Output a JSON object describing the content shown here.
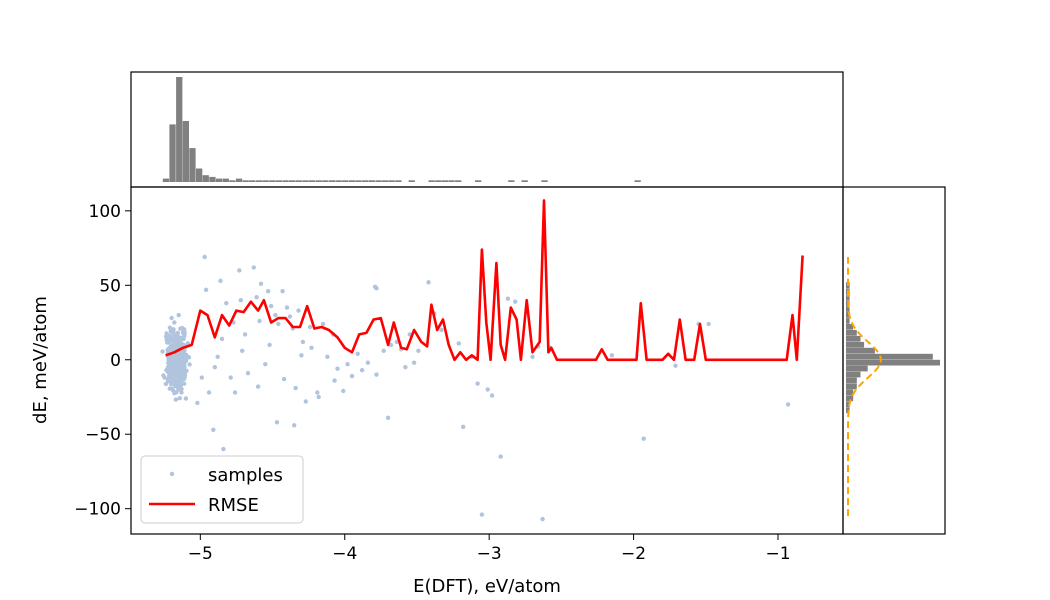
{
  "chart_data": {
    "type": "scatter",
    "xlabel": "E(DFT), eV/atom",
    "ylabel": "dE, meV/atom",
    "xlim": [
      -5.48,
      -0.55
    ],
    "ylim": [
      -117,
      116
    ],
    "xticks": [
      -5,
      -4,
      -3,
      -2,
      -1
    ],
    "xtick_labels": [
      "−5",
      "−4",
      "−3",
      "−2",
      "−1"
    ],
    "yticks": [
      -100,
      -50,
      0,
      50,
      100
    ],
    "ytick_labels": [
      "−100",
      "−50",
      "0",
      "50",
      "100"
    ],
    "legend": {
      "placement": "lower-left",
      "entries": [
        "samples",
        "RMSE"
      ]
    },
    "colors": {
      "samples": "#b0c4de",
      "rmse": "#ff0000",
      "histogram": "#808080",
      "gaussian": "#ffa500"
    },
    "series": [
      {
        "name": "samples",
        "type": "scatter",
        "points": [
          [
            -4.97,
            69
          ],
          [
            -4.73,
            60
          ],
          [
            -4.63,
            62
          ],
          [
            -4.86,
            53
          ],
          [
            -4.58,
            51
          ],
          [
            -4.96,
            47
          ],
          [
            -4.53,
            46
          ],
          [
            -4.43,
            46
          ],
          [
            -4.61,
            42
          ],
          [
            -4.72,
            40
          ],
          [
            -4.82,
            38
          ],
          [
            -4.51,
            36
          ],
          [
            -4.32,
            33
          ],
          [
            -4.38,
            29
          ],
          [
            -4.46,
            24
          ],
          [
            -4.24,
            22
          ],
          [
            -4.15,
            24
          ],
          [
            -4.08,
            17
          ],
          [
            -4.29,
            12
          ],
          [
            -4.52,
            10
          ],
          [
            -4.71,
            6
          ],
          [
            -4.88,
            2
          ],
          [
            -4.79,
            -12
          ],
          [
            -4.67,
            -9
          ],
          [
            -4.55,
            -3
          ],
          [
            -4.42,
            -13
          ],
          [
            -4.34,
            -19
          ],
          [
            -4.27,
            -28
          ],
          [
            -4.18,
            -25
          ],
          [
            -4.07,
            -14
          ],
          [
            -4.01,
            -21
          ],
          [
            -3.95,
            -11
          ],
          [
            -3.88,
            -7
          ],
          [
            -3.78,
            -10
          ],
          [
            -3.79,
            49
          ],
          [
            -3.78,
            48
          ],
          [
            -3.68,
            10
          ],
          [
            -3.61,
            7
          ],
          [
            -3.55,
            17
          ],
          [
            -3.42,
            52
          ],
          [
            -3.38,
            31
          ],
          [
            -3.33,
            20
          ],
          [
            -3.21,
            11
          ],
          [
            -3.18,
            -45
          ],
          [
            -3.12,
            2
          ],
          [
            -3.08,
            -16
          ],
          [
            -3.05,
            -104
          ],
          [
            -3.01,
            -20
          ],
          [
            -2.98,
            -24
          ],
          [
            -2.92,
            -65
          ],
          [
            -2.87,
            41
          ],
          [
            -2.82,
            39
          ],
          [
            -2.74,
            33
          ],
          [
            -2.66,
            9
          ],
          [
            -2.63,
            -107
          ],
          [
            -2.58,
            8
          ],
          [
            -2.7,
            2
          ],
          [
            -2.15,
            3
          ],
          [
            -1.93,
            -53
          ],
          [
            -1.71,
            -4
          ],
          [
            -1.55,
            24
          ],
          [
            -1.48,
            24
          ],
          [
            -0.93,
            -30
          ],
          [
            -4.6,
            -18
          ],
          [
            -4.47,
            -42
          ],
          [
            -4.35,
            -44
          ],
          [
            -4.19,
            -22
          ],
          [
            -3.7,
            -39
          ],
          [
            -3.49,
            6
          ],
          [
            -3.52,
            -2
          ],
          [
            -4.84,
            -60
          ],
          [
            -4.91,
            -47
          ],
          [
            -4.94,
            -22
          ],
          [
            -4.76,
            -22
          ],
          [
            -5.1,
            -26
          ],
          [
            -5.02,
            -29
          ],
          [
            -4.99,
            -12
          ],
          [
            -4.9,
            -5
          ],
          [
            -4.85,
            14
          ],
          [
            -4.77,
            25
          ],
          [
            -4.69,
            17
          ],
          [
            -4.59,
            26
          ],
          [
            -4.48,
            30
          ],
          [
            -4.4,
            35
          ],
          [
            -4.36,
            21
          ],
          [
            -4.3,
            3
          ],
          [
            -4.23,
            8
          ],
          [
            -4.12,
            2
          ],
          [
            -4.05,
            -6
          ],
          [
            -3.98,
            -3
          ],
          [
            -3.91,
            4
          ],
          [
            -3.84,
            -2
          ],
          [
            -3.73,
            6
          ],
          [
            -3.64,
            12
          ],
          [
            -3.58,
            -5
          ],
          [
            -5.18,
            25
          ],
          [
            -5.15,
            30
          ],
          [
            -5.12,
            18
          ],
          [
            -5.16,
            -18
          ],
          [
            -5.13,
            -22
          ]
        ]
      },
      {
        "name": "RMSE",
        "type": "line",
        "points": [
          [
            -5.24,
            3
          ],
          [
            -5.18,
            5
          ],
          [
            -5.12,
            8
          ],
          [
            -5.06,
            10
          ],
          [
            -5.0,
            33
          ],
          [
            -4.95,
            30
          ],
          [
            -4.9,
            15
          ],
          [
            -4.85,
            30
          ],
          [
            -4.8,
            23
          ],
          [
            -4.75,
            33
          ],
          [
            -4.7,
            32
          ],
          [
            -4.65,
            39
          ],
          [
            -4.6,
            33
          ],
          [
            -4.56,
            40
          ],
          [
            -4.51,
            25
          ],
          [
            -4.46,
            28
          ],
          [
            -4.41,
            28
          ],
          [
            -4.36,
            22
          ],
          [
            -4.31,
            22
          ],
          [
            -4.26,
            36
          ],
          [
            -4.21,
            21
          ],
          [
            -4.16,
            22
          ],
          [
            -4.11,
            20
          ],
          [
            -4.05,
            15
          ],
          [
            -4.0,
            8
          ],
          [
            -3.95,
            5
          ],
          [
            -3.9,
            17
          ],
          [
            -3.85,
            18
          ],
          [
            -3.8,
            27
          ],
          [
            -3.75,
            28
          ],
          [
            -3.7,
            10
          ],
          [
            -3.66,
            25
          ],
          [
            -3.61,
            8
          ],
          [
            -3.57,
            7
          ],
          [
            -3.52,
            20
          ],
          [
            -3.47,
            12
          ],
          [
            -3.43,
            9
          ],
          [
            -3.4,
            37
          ],
          [
            -3.36,
            20
          ],
          [
            -3.32,
            27
          ],
          [
            -3.28,
            10
          ],
          [
            -3.24,
            0
          ],
          [
            -3.2,
            5
          ],
          [
            -3.16,
            0
          ],
          [
            -3.12,
            3
          ],
          [
            -3.08,
            0
          ],
          [
            -3.05,
            74
          ],
          [
            -3.02,
            25
          ],
          [
            -2.99,
            0
          ],
          [
            -2.95,
            65
          ],
          [
            -2.92,
            10
          ],
          [
            -2.89,
            0
          ],
          [
            -2.85,
            35
          ],
          [
            -2.81,
            27
          ],
          [
            -2.78,
            0
          ],
          [
            -2.74,
            40
          ],
          [
            -2.7,
            5
          ],
          [
            -2.65,
            12
          ],
          [
            -2.62,
            107
          ],
          [
            -2.59,
            5
          ],
          [
            -2.57,
            8
          ],
          [
            -2.53,
            0
          ],
          [
            -2.26,
            0
          ],
          [
            -2.22,
            7
          ],
          [
            -2.18,
            0
          ],
          [
            -1.98,
            0
          ],
          [
            -1.95,
            38
          ],
          [
            -1.91,
            0
          ],
          [
            -1.8,
            0
          ],
          [
            -1.76,
            4
          ],
          [
            -1.72,
            0
          ],
          [
            -1.68,
            27
          ],
          [
            -1.64,
            0
          ],
          [
            -1.58,
            0
          ],
          [
            -1.54,
            24
          ],
          [
            -1.5,
            0
          ],
          [
            -0.94,
            0
          ],
          [
            -0.9,
            30
          ],
          [
            -0.87,
            0
          ],
          [
            -0.83,
            70
          ]
        ]
      }
    ],
    "top_histogram": {
      "bin_edges_start": -5.26,
      "bin_width": 0.046,
      "counts": [
        2,
        34,
        62,
        36,
        20,
        8,
        4,
        3,
        2,
        2,
        1,
        2,
        1,
        1,
        1,
        1,
        1,
        1,
        1,
        1,
        1,
        1,
        1,
        1,
        1,
        1,
        1,
        1,
        1,
        1,
        1,
        1,
        1,
        1,
        1,
        1,
        0,
        1,
        0,
        0,
        1,
        1,
        1,
        1,
        1,
        0,
        0,
        1,
        0,
        0,
        0,
        0,
        1,
        0,
        1,
        0,
        0,
        1,
        0,
        0,
        0,
        0,
        0,
        0,
        0,
        0,
        0,
        0,
        0,
        0,
        0,
        1
      ]
    },
    "right_histogram": {
      "bins": [
        [
          -34,
          1
        ],
        [
          -30,
          1
        ],
        [
          -26,
          2
        ],
        [
          -22,
          2
        ],
        [
          -18,
          3
        ],
        [
          -14,
          3
        ],
        [
          -10,
          4
        ],
        [
          -6,
          6
        ],
        [
          -2,
          26
        ],
        [
          2,
          24
        ],
        [
          6,
          8
        ],
        [
          10,
          5
        ],
        [
          14,
          4
        ],
        [
          18,
          3
        ],
        [
          22,
          2
        ],
        [
          26,
          1
        ],
        [
          30,
          1
        ],
        [
          34,
          1
        ],
        [
          38,
          1
        ],
        [
          42,
          1
        ],
        [
          46,
          1
        ],
        [
          50,
          1
        ]
      ]
    },
    "gaussian": {
      "mean": 0,
      "sd": 12,
      "peak": 0.35
    }
  }
}
